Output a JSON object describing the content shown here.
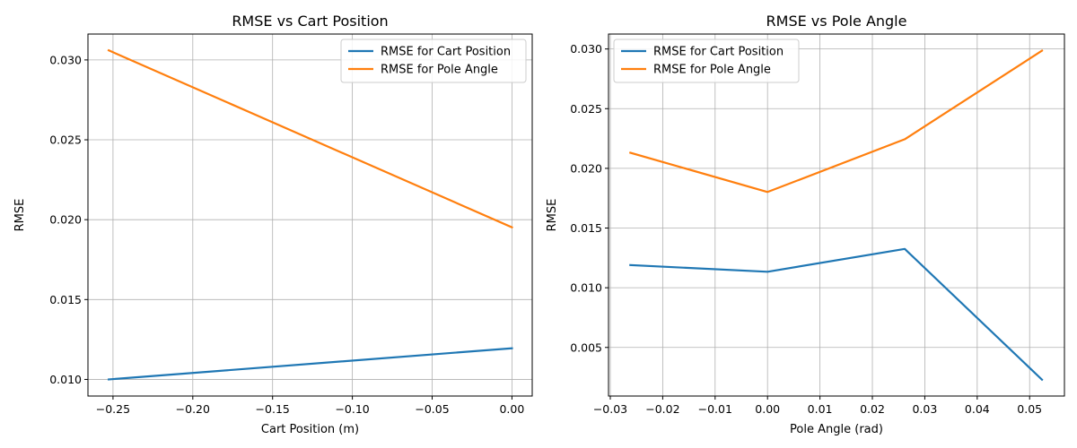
{
  "chart_data": [
    {
      "type": "line",
      "title": "RMSE vs Cart Position",
      "xlabel": "Cart Position (m)",
      "ylabel": "RMSE",
      "xlim": [
        -0.2657,
        0.0127
      ],
      "ylim": [
        0.00896,
        0.03162
      ],
      "xticks": [
        -0.25,
        -0.2,
        -0.15,
        -0.1,
        -0.05,
        0.0
      ],
      "xtick_labels": [
        "−0.25",
        "−0.20",
        "−0.15",
        "−0.10",
        "−0.05",
        "0.00"
      ],
      "yticks": [
        0.01,
        0.015,
        0.02,
        0.025,
        0.03
      ],
      "ytick_labels": [
        "0.010",
        "0.015",
        "0.020",
        "0.025",
        "0.030"
      ],
      "grid": true,
      "legend_position": "top-right",
      "series": [
        {
          "name": "RMSE for Cart Position",
          "color": "#1f77b4",
          "x": [
            -0.2527,
            0.0
          ],
          "y": [
            0.01,
            0.01195
          ]
        },
        {
          "name": "RMSE for Pole Angle",
          "color": "#ff7f0e",
          "x": [
            -0.2527,
            0.0
          ],
          "y": [
            0.0306,
            0.01952
          ]
        }
      ]
    },
    {
      "type": "line",
      "title": "RMSE vs Pole Angle",
      "xlabel": "Pole Angle (rad)",
      "ylabel": "RMSE",
      "xlim": [
        -0.03034,
        0.05664
      ],
      "ylim": [
        0.00093,
        0.03125
      ],
      "xticks": [
        -0.03,
        -0.02,
        -0.01,
        0.0,
        0.01,
        0.02,
        0.03,
        0.04,
        0.05
      ],
      "xtick_labels": [
        "−0.03",
        "−0.02",
        "−0.01",
        "0.00",
        "0.01",
        "0.02",
        "0.03",
        "0.04",
        "0.05"
      ],
      "yticks": [
        0.005,
        0.01,
        0.015,
        0.02,
        0.025,
        0.03
      ],
      "ytick_labels": [
        "0.005",
        "0.010",
        "0.015",
        "0.020",
        "0.025",
        "0.030"
      ],
      "grid": true,
      "legend_position": "top-left",
      "series": [
        {
          "name": "RMSE for Cart Position",
          "color": "#1f77b4",
          "x": [
            -0.02618,
            0.0,
            0.02618,
            0.05236
          ],
          "y": [
            0.0119,
            0.01134,
            0.01325,
            0.0023
          ]
        },
        {
          "name": "RMSE for Pole Angle",
          "color": "#ff7f0e",
          "x": [
            -0.02618,
            0.0,
            0.02618,
            0.05236
          ],
          "y": [
            0.02131,
            0.01802,
            0.02244,
            0.02986
          ]
        }
      ]
    }
  ]
}
